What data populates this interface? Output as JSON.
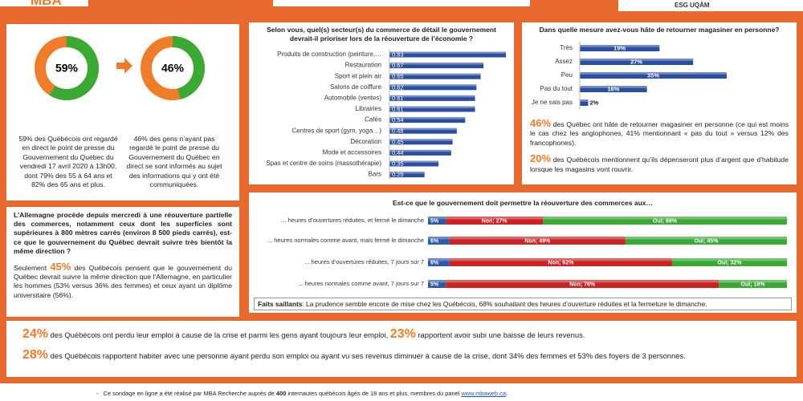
{
  "header": {
    "logo": "MBA",
    "logo_right": "ESG UQÀM"
  },
  "donuts": [
    {
      "value": 59,
      "label": "59%",
      "text": "59% des Québécois ont regardé en direct le point de presse du Gouvernement du Québec du vendredi 17 avril 2020 à 13h00, dont 79% des 55 à 64 ans et 82% des 65 ans et plus.",
      "color": "#3aaa35"
    },
    {
      "value": 46,
      "label": "46%",
      "text": "46% des gens n’ayant pas regardé le point de presse du Gouvernement du Québec en direct se sont informés au sujet des informations qui y ont été communiquées.",
      "color": "#3aaa35"
    }
  ],
  "chart_data": [
    {
      "type": "bar",
      "title": "Selon vous, quel(s) secteur(s) du commerce de détail le gouvernement devrait-il prioriser lors de la réouverture de l’économie ?",
      "categories": [
        "Produits de construction (peinture,…",
        "Restauration",
        "Sport et plein air",
        "Salons de coiffure",
        "Automobile (ventes)",
        "Librairies",
        "Cafés",
        "Centres de sport (gym, yoga…)",
        "Décoration",
        "Mode et accessoires",
        "Spas et centre de soins (massothérapie)",
        "Bars"
      ],
      "values": [
        0.83,
        0.67,
        0.65,
        0.62,
        0.61,
        0.61,
        0.54,
        0.48,
        0.45,
        0.44,
        0.35,
        0.25
      ],
      "color": "#2b4fa0"
    },
    {
      "type": "bar",
      "title": "Dans quelle mesure avez-vous hâte de retourner magasiner en personne?",
      "categories": [
        "Très",
        "Assez",
        "Peu",
        "Pas du tout",
        "Je ne sais pas"
      ],
      "values": [
        19,
        27,
        35,
        16,
        2
      ],
      "value_labels": [
        "19%",
        "27%",
        "35%",
        "16%",
        "2%"
      ],
      "color": "#2b4fa0"
    },
    {
      "type": "stacked_bar",
      "title": "Est-ce que le gouvernement doit permettre la réouverture des commerces aux…",
      "categories": [
        "... heures d’ouvertures réduites, et fermé le dimanche",
        "... heures normales comme avant, mais fermé le dimanche",
        "... heures d’ouvertures réduites, 7 jours sur 7",
        "... heures normales comme avant, 7 jours sur 7"
      ],
      "xlim": [
        0,
        100
      ],
      "series": [
        {
          "color": "#2e5aa8",
          "values": [
            5,
            6,
            6,
            5
          ],
          "value_labels": [
            "5%",
            "6%",
            "6%",
            "5%"
          ]
        },
        {
          "name": "Non",
          "color": "#cc2222",
          "values": [
            27,
            49,
            62,
            76
          ],
          "value_labels": [
            "Non; 27%",
            "Non; 49%",
            "Non; 62%",
            "Non; 76%"
          ]
        },
        {
          "name": "Oui",
          "color": "#3aaa35",
          "values": [
            68,
            45,
            32,
            19
          ],
          "value_labels": [
            "Oui; 68%",
            "Oui; 45%",
            "Oui; 32%",
            "Oui; 19%"
          ]
        }
      ]
    }
  ],
  "allemagne": {
    "question": "L’Allemagne procède depuis mercredi à une réouverture partielle des commerces, notamment ceux dont les superficies sont supérieures à 800 mètres carrés (environ 8 500 pieds carrés), est-ce que le gouvernement du Québec devrait suivre très bientôt la même direction ?",
    "answer": [
      "Seulement ",
      "45%",
      " des Québécois pensent que le gouvernement du Québec devrait suivre la même direction que l’Allemagne, en particulier les hommes (53% versus 36% des femmes) et ceux ayant un diplôme universitaire (56%)."
    ]
  },
  "retour": [
    [
      "46%",
      " des Québec ont hâte de retourner magasiner en personne (ce qui est moins le cas chez les anglophones, 41% mentionnant « pas du tout » versus 12% des francophones)."
    ],
    [
      "20%",
      " des Québécois mentionnent qu’ils dépenseront plus d’argent que d’habitude lorsque les magasins vont rouvrir."
    ]
  ],
  "faits": [
    "Faits saillants",
    ": La prudence semble encore de mise chez les Québécois, 68% souhaitant des heures d’ouverture réduites et la fermeture le dimanche."
  ],
  "bottom": [
    [
      "24%",
      " des Québécois ont perdu leur emploi à cause de la crise et parmi les gens ayant toujours leur emploi, ",
      "23%",
      " rapportent avoir subi une baisse de leurs revenus."
    ],
    [
      "28%",
      " des Québécois rapportent habiter avec une personne ayant perdu son emploi ou ayant vu ses revenus diminuer à cause de la crise, dont 34% des femmes et 53% des foyers de 3 personnes."
    ]
  ],
  "footer": [
    "Ce sondage en ligne a été réalisé par MBA Recherche auprès de ",
    "400",
    " internautes québécois âgés de 18 ans et plus, membres du panel ",
    "www.mbaweb.ca",
    ";"
  ]
}
